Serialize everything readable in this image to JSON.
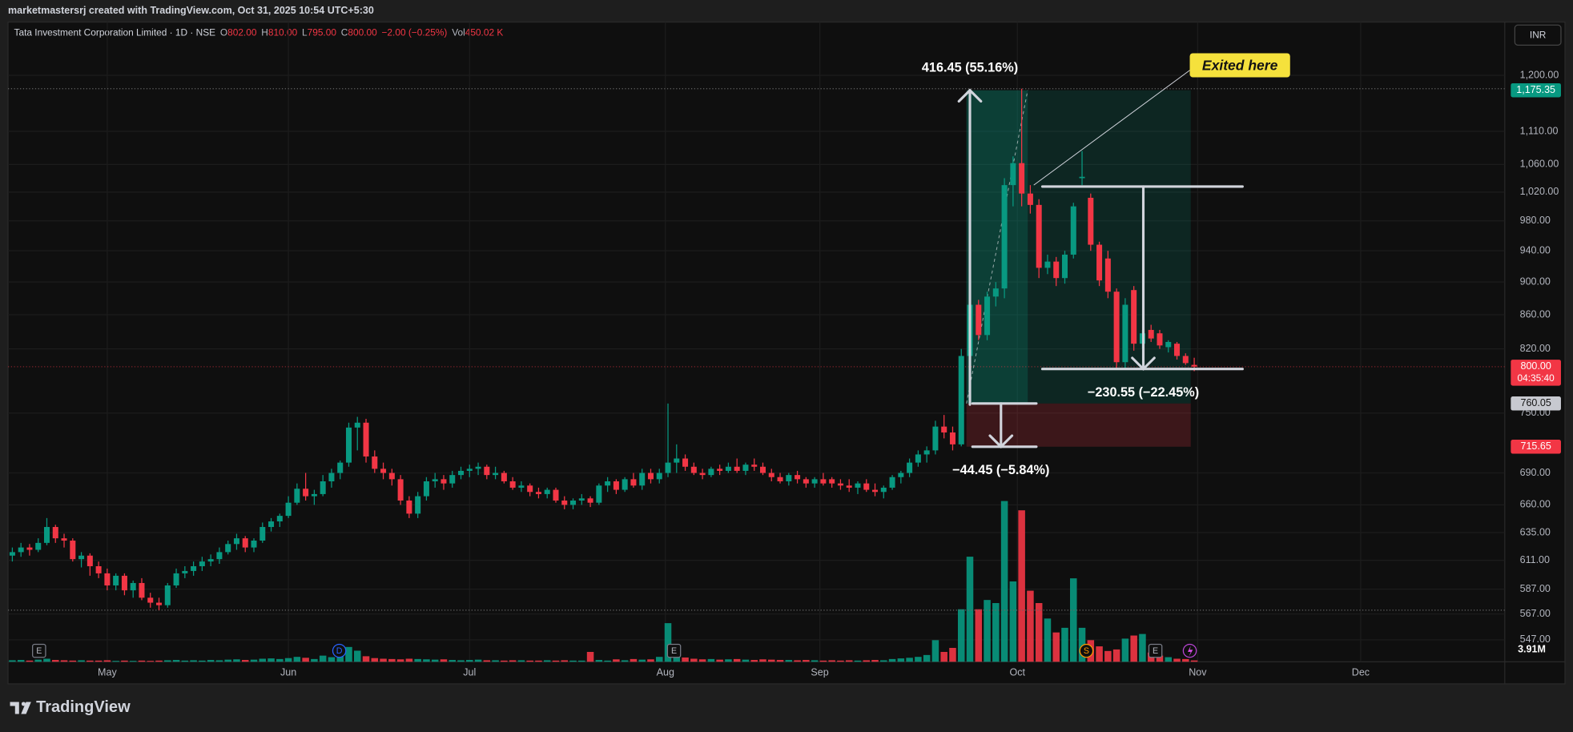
{
  "header": {
    "attribution": "marketmastersrj created with TradingView.com, Oct 31, 2025 10:54 UTC+5:30",
    "symbol": "Tata Investment Corporation Limited · 1D · NSE",
    "o_label": "O",
    "o": "802.00",
    "h_label": "H",
    "h": "810.00",
    "l_label": "L",
    "l": "795.00",
    "c_label": "C",
    "c": "800.00",
    "change": "−2.00 (−0.25%)",
    "vol_label": "Vol",
    "vol": "450.02 K",
    "currency": "INR"
  },
  "footer": {
    "brand": "TradingView"
  },
  "chart_data": {
    "type": "candlestick",
    "log_scale": true,
    "grid": true,
    "up_color": "#089981",
    "down_color": "#f23645",
    "ylim": [
      530.5,
      1292.4
    ],
    "yticks": [
      {
        "value": 1200,
        "label": "1,200.00"
      },
      {
        "value": 1110,
        "label": "1,110.00"
      },
      {
        "value": 1060,
        "label": "1,060.00"
      },
      {
        "value": 1020,
        "label": "1,020.00"
      },
      {
        "value": 980,
        "label": "980.00"
      },
      {
        "value": 940,
        "label": "940.00"
      },
      {
        "value": 900,
        "label": "900.00"
      },
      {
        "value": 860,
        "label": "860.00"
      },
      {
        "value": 820,
        "label": "820.00"
      },
      {
        "value": 750,
        "label": "750.00"
      },
      {
        "value": 690,
        "label": "690.00"
      },
      {
        "value": 660,
        "label": "660.00"
      },
      {
        "value": 635,
        "label": "635.00"
      },
      {
        "value": 611,
        "label": "611.00"
      },
      {
        "value": 587,
        "label": "587.00"
      },
      {
        "value": 567,
        "label": "567.00"
      },
      {
        "value": 547,
        "label": "547.00"
      }
    ],
    "xlim": [
      -0.5,
      173
    ],
    "xticks": [
      {
        "value": 11,
        "label": "May"
      },
      {
        "value": 32,
        "label": "Jun"
      },
      {
        "value": 53,
        "label": "Jul"
      },
      {
        "value": 75.7,
        "label": "Aug"
      },
      {
        "value": 93.6,
        "label": "Sep"
      },
      {
        "value": 116.5,
        "label": "Oct"
      },
      {
        "value": 137.4,
        "label": "Nov"
      },
      {
        "value": 156.3,
        "label": "Dec"
      }
    ],
    "ohlc": [
      [
        615,
        622,
        610,
        618
      ],
      [
        618,
        626,
        614,
        622
      ],
      [
        622,
        625,
        615,
        620
      ],
      [
        620,
        630,
        618,
        626
      ],
      [
        626,
        648,
        624,
        640
      ],
      [
        640,
        642,
        626,
        630
      ],
      [
        630,
        634,
        622,
        628
      ],
      [
        628,
        630,
        610,
        612
      ],
      [
        612,
        618,
        605,
        615
      ],
      [
        615,
        617,
        598,
        606
      ],
      [
        606,
        610,
        596,
        600
      ],
      [
        600,
        604,
        586,
        590
      ],
      [
        590,
        600,
        586,
        598
      ],
      [
        598,
        600,
        582,
        586
      ],
      [
        586,
        594,
        580,
        592
      ],
      [
        592,
        596,
        578,
        580
      ],
      [
        580,
        584,
        572,
        576
      ],
      [
        576,
        580,
        570,
        574
      ],
      [
        574,
        592,
        572,
        590
      ],
      [
        590,
        604,
        588,
        600
      ],
      [
        600,
        606,
        596,
        602
      ],
      [
        602,
        610,
        598,
        606
      ],
      [
        606,
        614,
        602,
        610
      ],
      [
        610,
        616,
        606,
        612
      ],
      [
        612,
        622,
        608,
        618
      ],
      [
        618,
        628,
        616,
        625
      ],
      [
        625,
        634,
        620,
        630
      ],
      [
        630,
        632,
        618,
        622
      ],
      [
        622,
        630,
        618,
        628
      ],
      [
        628,
        644,
        626,
        640
      ],
      [
        640,
        648,
        636,
        645
      ],
      [
        645,
        652,
        640,
        650
      ],
      [
        650,
        668,
        648,
        662
      ],
      [
        662,
        680,
        660,
        675
      ],
      [
        675,
        690,
        664,
        668
      ],
      [
        668,
        674,
        660,
        670
      ],
      [
        670,
        688,
        668,
        682
      ],
      [
        682,
        694,
        676,
        690
      ],
      [
        690,
        702,
        684,
        700
      ],
      [
        700,
        740,
        696,
        735
      ],
      [
        735,
        746,
        712,
        740
      ],
      [
        740,
        744,
        700,
        706
      ],
      [
        706,
        712,
        690,
        694
      ],
      [
        694,
        700,
        684,
        690
      ],
      [
        690,
        694,
        678,
        684
      ],
      [
        684,
        688,
        660,
        664
      ],
      [
        664,
        668,
        648,
        652
      ],
      [
        652,
        672,
        648,
        668
      ],
      [
        668,
        686,
        664,
        682
      ],
      [
        682,
        690,
        676,
        684
      ],
      [
        684,
        688,
        674,
        680
      ],
      [
        680,
        692,
        676,
        688
      ],
      [
        688,
        696,
        684,
        692
      ],
      [
        692,
        698,
        686,
        694
      ],
      [
        694,
        700,
        688,
        696
      ],
      [
        696,
        698,
        684,
        688
      ],
      [
        688,
        696,
        684,
        690
      ],
      [
        690,
        692,
        680,
        682
      ],
      [
        682,
        686,
        674,
        676
      ],
      [
        676,
        682,
        672,
        678
      ],
      [
        678,
        680,
        668,
        672
      ],
      [
        672,
        676,
        666,
        670
      ],
      [
        670,
        676,
        666,
        674
      ],
      [
        674,
        676,
        662,
        664
      ],
      [
        664,
        668,
        656,
        660
      ],
      [
        660,
        666,
        656,
        664
      ],
      [
        664,
        670,
        660,
        666
      ],
      [
        666,
        668,
        658,
        662
      ],
      [
        662,
        680,
        660,
        678
      ],
      [
        678,
        686,
        672,
        682
      ],
      [
        682,
        684,
        670,
        674
      ],
      [
        674,
        686,
        672,
        684
      ],
      [
        684,
        690,
        676,
        678
      ],
      [
        678,
        694,
        674,
        690
      ],
      [
        690,
        694,
        680,
        684
      ],
      [
        684,
        694,
        680,
        690
      ],
      [
        690,
        760,
        686,
        700
      ],
      [
        700,
        718,
        690,
        704
      ],
      [
        704,
        708,
        692,
        696
      ],
      [
        696,
        700,
        688,
        690
      ],
      [
        690,
        694,
        684,
        688
      ],
      [
        688,
        696,
        686,
        694
      ],
      [
        694,
        698,
        688,
        692
      ],
      [
        692,
        700,
        690,
        696
      ],
      [
        696,
        704,
        690,
        692
      ],
      [
        692,
        700,
        688,
        698
      ],
      [
        698,
        704,
        692,
        696
      ],
      [
        696,
        700,
        688,
        690
      ],
      [
        690,
        694,
        682,
        686
      ],
      [
        686,
        690,
        680,
        682
      ],
      [
        682,
        690,
        678,
        688
      ],
      [
        688,
        692,
        680,
        684
      ],
      [
        684,
        686,
        676,
        680
      ],
      [
        680,
        686,
        676,
        684
      ],
      [
        684,
        690,
        678,
        680
      ],
      [
        684,
        686,
        676,
        680
      ],
      [
        680,
        684,
        674,
        678
      ],
      [
        678,
        684,
        672,
        676
      ],
      [
        676,
        682,
        670,
        680
      ],
      [
        680,
        684,
        672,
        674
      ],
      [
        674,
        680,
        668,
        672
      ],
      [
        672,
        678,
        666,
        676
      ],
      [
        676,
        688,
        674,
        686
      ],
      [
        686,
        692,
        680,
        690
      ],
      [
        690,
        704,
        686,
        700
      ],
      [
        700,
        712,
        696,
        708
      ],
      [
        708,
        716,
        700,
        712
      ],
      [
        712,
        742,
        708,
        736
      ],
      [
        736,
        748,
        724,
        730
      ],
      [
        730,
        736,
        712,
        718
      ],
      [
        718,
        820,
        716,
        812
      ],
      [
        812,
        880,
        800,
        872
      ],
      [
        872,
        878,
        830,
        836
      ],
      [
        836,
        888,
        830,
        882
      ],
      [
        882,
        900,
        870,
        892
      ],
      [
        892,
        1040,
        880,
        1030
      ],
      [
        1030,
        1072,
        1000,
        1062
      ],
      [
        1062,
        1178,
        1000,
        1018
      ],
      [
        1018,
        1030,
        990,
        1002
      ],
      [
        1002,
        1010,
        905,
        918
      ],
      [
        918,
        935,
        910,
        926
      ],
      [
        926,
        932,
        895,
        905
      ],
      [
        905,
        940,
        898,
        935
      ],
      [
        935,
        1005,
        930,
        1000
      ],
      [
        1040,
        1080,
        1030,
        1042
      ],
      [
        1012,
        1018,
        940,
        948
      ],
      [
        948,
        952,
        895,
        902
      ],
      [
        930,
        940,
        880,
        888
      ],
      [
        888,
        892,
        798,
        805
      ],
      [
        805,
        880,
        798,
        872
      ],
      [
        890,
        895,
        818,
        826
      ],
      [
        826,
        842,
        820,
        838
      ],
      [
        842,
        848,
        828,
        832
      ],
      [
        838,
        842,
        820,
        824
      ],
      [
        822,
        830,
        816,
        828
      ],
      [
        826,
        828,
        808,
        812
      ],
      [
        812,
        815,
        802,
        804
      ],
      [
        802,
        810,
        795,
        800
      ]
    ],
    "volume": [
      0.5,
      0.6,
      0.4,
      0.7,
      1.0,
      0.6,
      0.5,
      0.4,
      0.5,
      0.4,
      0.4,
      0.5,
      0.3,
      0.4,
      0.3,
      0.4,
      0.3,
      0.4,
      0.5,
      0.6,
      0.4,
      0.5,
      0.4,
      0.6,
      0.5,
      0.7,
      0.8,
      0.6,
      0.7,
      1.0,
      1.1,
      0.9,
      1.2,
      1.6,
      1.3,
      0.9,
      2.0,
      1.5,
      1.8,
      4.8,
      3.6,
      1.8,
      1.2,
      1.0,
      0.9,
      0.8,
      1.0,
      0.9,
      0.8,
      0.7,
      0.8,
      0.6,
      0.5,
      0.6,
      0.7,
      0.5,
      0.5,
      0.4,
      0.5,
      0.5,
      0.4,
      0.4,
      0.5,
      0.4,
      0.5,
      0.4,
      0.4,
      3.2,
      0.6,
      0.4,
      0.8,
      0.5,
      0.9,
      0.7,
      0.8,
      1.6,
      12.5,
      3.0,
      1.4,
      1.0,
      0.8,
      0.9,
      0.7,
      0.8,
      0.9,
      0.7,
      0.6,
      0.8,
      0.7,
      0.6,
      0.6,
      0.5,
      0.6,
      0.5,
      0.4,
      0.5,
      0.4,
      0.5,
      0.4,
      0.5,
      0.6,
      0.5,
      0.9,
      1.1,
      1.3,
      1.6,
      2.2,
      7.0,
      3.2,
      4.5,
      17,
      34,
      17,
      20,
      19,
      52,
      26,
      49,
      23,
      19,
      14,
      9.5,
      11,
      27,
      11,
      7,
      5,
      3.5,
      4,
      7.5,
      8.5,
      9,
      3,
      2,
      1.5,
      1,
      0.9,
      0.45
    ],
    "volume_ylim": [
      0,
      60
    ],
    "volume_ma_label": {
      "value": 3.91,
      "label": "3.91M"
    },
    "last_price": {
      "value": 800,
      "label": "800.00",
      "countdown": "04:35:40"
    },
    "position": {
      "start": 110.6,
      "exit": 117.7,
      "end": 136.6,
      "target": {
        "value": 1175.35,
        "label": "1,175.35"
      },
      "entry": {
        "value": 760.05,
        "label": "760.05"
      },
      "stop": {
        "value": 715.65,
        "label": "715.65"
      }
    },
    "measures": [
      {
        "from": 758.9,
        "to": 1175.35,
        "x": 111,
        "label": "416.45 (55.16%)"
      },
      {
        "from": 1028,
        "to": 797.45,
        "x": 131.1,
        "x1": 119.4,
        "x2": 142.6,
        "label": "−230.55 (−22.45%)"
      },
      {
        "from": 760.05,
        "to": 715.65,
        "x": 114.6,
        "x1": 111.3,
        "x2": 118.7,
        "label": "−44.45 (−5.84%)"
      }
    ],
    "callout": {
      "text": "Exited here",
      "x": 142.3,
      "price": 1217,
      "to_x": 118.4,
      "to_price": 1030
    },
    "events": [
      {
        "x": 3.1,
        "label": "E",
        "color": "#787b86"
      },
      {
        "x": 37.9,
        "label": "D",
        "color": "#2962ff"
      },
      {
        "x": 76.7,
        "label": "E",
        "color": "#787b86"
      },
      {
        "x": 124.5,
        "label": "S",
        "color": "#ff9800"
      },
      {
        "x": 132.5,
        "label": "E",
        "color": "#787b86"
      }
    ]
  }
}
